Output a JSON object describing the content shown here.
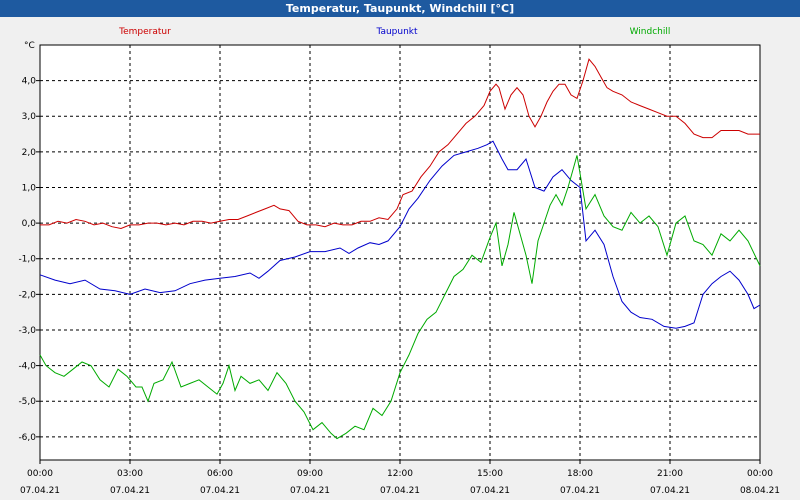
{
  "window": {
    "title": "Temperatur, Taupunkt, Windchill [°C]"
  },
  "chart_data": {
    "type": "line",
    "title": "Temperatur, Taupunkt, Windchill [°C]",
    "ylabel": "°C",
    "ylim": [
      -6.65,
      5.0
    ],
    "y_ticks": [
      4.0,
      3.0,
      2.0,
      1.0,
      0.0,
      -1.0,
      -2.0,
      -3.0,
      -4.0,
      -5.0,
      -6.0
    ],
    "y_tick_labels": [
      "4,0",
      "3,0",
      "2,0",
      "1,0",
      "0,0",
      "-1,0",
      "-2,0",
      "-3,0",
      "-4,0",
      "-5,0",
      "-6,0"
    ],
    "x_range_hours": [
      0,
      24
    ],
    "x_ticks": [
      {
        "hour": 0,
        "time": "00:00",
        "date": "07.04.21"
      },
      {
        "hour": 3,
        "time": "03:00",
        "date": "07.04.21"
      },
      {
        "hour": 6,
        "time": "06:00",
        "date": "07.04.21"
      },
      {
        "hour": 9,
        "time": "09:00",
        "date": "07.04.21"
      },
      {
        "hour": 12,
        "time": "12:00",
        "date": "07.04.21"
      },
      {
        "hour": 15,
        "time": "15:00",
        "date": "07.04.21"
      },
      {
        "hour": 18,
        "time": "18:00",
        "date": "07.04.21"
      },
      {
        "hour": 21,
        "time": "21:00",
        "date": "07.04.21"
      },
      {
        "hour": 24,
        "time": "00:00",
        "date": "08.04.21"
      }
    ],
    "grid": true,
    "series": [
      {
        "name": "Temperatur",
        "color": "#cc0000",
        "points": [
          [
            0,
            -0.05
          ],
          [
            0.3,
            -0.05
          ],
          [
            0.6,
            0.05
          ],
          [
            0.9,
            0.0
          ],
          [
            1.2,
            0.1
          ],
          [
            1.5,
            0.05
          ],
          [
            1.8,
            -0.05
          ],
          [
            2.1,
            0.0
          ],
          [
            2.4,
            -0.1
          ],
          [
            2.7,
            -0.15
          ],
          [
            3.0,
            -0.05
          ],
          [
            3.3,
            -0.05
          ],
          [
            3.6,
            0.0
          ],
          [
            3.9,
            0.0
          ],
          [
            4.2,
            -0.05
          ],
          [
            4.5,
            0.0
          ],
          [
            4.8,
            -0.05
          ],
          [
            5.1,
            0.05
          ],
          [
            5.4,
            0.05
          ],
          [
            5.7,
            0.0
          ],
          [
            6.0,
            0.05
          ],
          [
            6.3,
            0.1
          ],
          [
            6.6,
            0.1
          ],
          [
            6.9,
            0.2
          ],
          [
            7.2,
            0.3
          ],
          [
            7.5,
            0.4
          ],
          [
            7.8,
            0.5
          ],
          [
            8.0,
            0.4
          ],
          [
            8.3,
            0.35
          ],
          [
            8.6,
            0.05
          ],
          [
            8.9,
            -0.05
          ],
          [
            9.2,
            -0.05
          ],
          [
            9.5,
            -0.1
          ],
          [
            9.8,
            0.0
          ],
          [
            10.1,
            -0.05
          ],
          [
            10.4,
            -0.05
          ],
          [
            10.7,
            0.05
          ],
          [
            11.0,
            0.05
          ],
          [
            11.3,
            0.15
          ],
          [
            11.6,
            0.1
          ],
          [
            11.9,
            0.4
          ],
          [
            12.1,
            0.8
          ],
          [
            12.4,
            0.9
          ],
          [
            12.7,
            1.3
          ],
          [
            13.0,
            1.6
          ],
          [
            13.3,
            2.0
          ],
          [
            13.6,
            2.2
          ],
          [
            13.9,
            2.5
          ],
          [
            14.2,
            2.8
          ],
          [
            14.5,
            3.0
          ],
          [
            14.8,
            3.3
          ],
          [
            15.0,
            3.7
          ],
          [
            15.2,
            3.9
          ],
          [
            15.3,
            3.8
          ],
          [
            15.5,
            3.2
          ],
          [
            15.7,
            3.6
          ],
          [
            15.9,
            3.8
          ],
          [
            16.1,
            3.6
          ],
          [
            16.3,
            3.0
          ],
          [
            16.5,
            2.7
          ],
          [
            16.7,
            3.0
          ],
          [
            16.9,
            3.4
          ],
          [
            17.1,
            3.7
          ],
          [
            17.3,
            3.9
          ],
          [
            17.5,
            3.9
          ],
          [
            17.7,
            3.6
          ],
          [
            17.9,
            3.5
          ],
          [
            18.1,
            4.0
          ],
          [
            18.3,
            4.6
          ],
          [
            18.5,
            4.4
          ],
          [
            18.7,
            4.1
          ],
          [
            18.9,
            3.8
          ],
          [
            19.1,
            3.7
          ],
          [
            19.4,
            3.6
          ],
          [
            19.7,
            3.4
          ],
          [
            20.0,
            3.3
          ],
          [
            20.3,
            3.2
          ],
          [
            20.6,
            3.1
          ],
          [
            20.9,
            3.0
          ],
          [
            21.2,
            3.0
          ],
          [
            21.5,
            2.8
          ],
          [
            21.8,
            2.5
          ],
          [
            22.1,
            2.4
          ],
          [
            22.4,
            2.4
          ],
          [
            22.7,
            2.6
          ],
          [
            23.0,
            2.6
          ],
          [
            23.3,
            2.6
          ],
          [
            23.6,
            2.5
          ],
          [
            24.0,
            2.5
          ]
        ]
      },
      {
        "name": "Taupunkt",
        "color": "#0000cc",
        "points": [
          [
            0,
            -1.45
          ],
          [
            0.5,
            -1.6
          ],
          [
            1.0,
            -1.7
          ],
          [
            1.5,
            -1.6
          ],
          [
            2.0,
            -1.85
          ],
          [
            2.5,
            -1.9
          ],
          [
            3.0,
            -2.0
          ],
          [
            3.5,
            -1.85
          ],
          [
            4.0,
            -1.95
          ],
          [
            4.5,
            -1.9
          ],
          [
            5.0,
            -1.7
          ],
          [
            5.5,
            -1.6
          ],
          [
            6.0,
            -1.55
          ],
          [
            6.5,
            -1.5
          ],
          [
            7.0,
            -1.4
          ],
          [
            7.3,
            -1.55
          ],
          [
            7.6,
            -1.35
          ],
          [
            8.0,
            -1.05
          ],
          [
            8.5,
            -0.95
          ],
          [
            9.0,
            -0.8
          ],
          [
            9.5,
            -0.8
          ],
          [
            10.0,
            -0.7
          ],
          [
            10.3,
            -0.85
          ],
          [
            10.6,
            -0.7
          ],
          [
            11.0,
            -0.55
          ],
          [
            11.3,
            -0.6
          ],
          [
            11.6,
            -0.5
          ],
          [
            12.0,
            -0.1
          ],
          [
            12.3,
            0.4
          ],
          [
            12.6,
            0.7
          ],
          [
            13.0,
            1.2
          ],
          [
            13.4,
            1.6
          ],
          [
            13.8,
            1.9
          ],
          [
            14.2,
            2.0
          ],
          [
            14.6,
            2.1
          ],
          [
            14.9,
            2.2
          ],
          [
            15.1,
            2.3
          ],
          [
            15.4,
            1.8
          ],
          [
            15.6,
            1.5
          ],
          [
            15.9,
            1.5
          ],
          [
            16.2,
            1.8
          ],
          [
            16.5,
            1.0
          ],
          [
            16.8,
            0.9
          ],
          [
            17.1,
            1.3
          ],
          [
            17.4,
            1.5
          ],
          [
            17.7,
            1.2
          ],
          [
            18.0,
            1.0
          ],
          [
            18.2,
            -0.5
          ],
          [
            18.5,
            -0.2
          ],
          [
            18.8,
            -0.6
          ],
          [
            19.1,
            -1.5
          ],
          [
            19.4,
            -2.2
          ],
          [
            19.7,
            -2.5
          ],
          [
            20.0,
            -2.65
          ],
          [
            20.4,
            -2.7
          ],
          [
            20.8,
            -2.9
          ],
          [
            21.2,
            -2.95
          ],
          [
            21.5,
            -2.9
          ],
          [
            21.8,
            -2.8
          ],
          [
            22.1,
            -2.0
          ],
          [
            22.4,
            -1.7
          ],
          [
            22.7,
            -1.5
          ],
          [
            23.0,
            -1.35
          ],
          [
            23.3,
            -1.6
          ],
          [
            23.6,
            -2.0
          ],
          [
            23.8,
            -2.4
          ],
          [
            24.0,
            -2.3
          ]
        ]
      },
      {
        "name": "Windchill",
        "color": "#00aa00",
        "points": [
          [
            0,
            -3.7
          ],
          [
            0.2,
            -4.0
          ],
          [
            0.5,
            -4.2
          ],
          [
            0.8,
            -4.3
          ],
          [
            1.1,
            -4.1
          ],
          [
            1.4,
            -3.9
          ],
          [
            1.7,
            -4.0
          ],
          [
            2.0,
            -4.4
          ],
          [
            2.3,
            -4.6
          ],
          [
            2.6,
            -4.1
          ],
          [
            2.9,
            -4.3
          ],
          [
            3.2,
            -4.6
          ],
          [
            3.4,
            -4.6
          ],
          [
            3.6,
            -5.0
          ],
          [
            3.8,
            -4.5
          ],
          [
            4.1,
            -4.4
          ],
          [
            4.4,
            -3.9
          ],
          [
            4.7,
            -4.6
          ],
          [
            5.0,
            -4.5
          ],
          [
            5.3,
            -4.4
          ],
          [
            5.6,
            -4.6
          ],
          [
            5.9,
            -4.8
          ],
          [
            6.1,
            -4.5
          ],
          [
            6.3,
            -4.0
          ],
          [
            6.5,
            -4.7
          ],
          [
            6.7,
            -4.3
          ],
          [
            7.0,
            -4.5
          ],
          [
            7.3,
            -4.4
          ],
          [
            7.6,
            -4.7
          ],
          [
            7.9,
            -4.2
          ],
          [
            8.2,
            -4.5
          ],
          [
            8.5,
            -5.0
          ],
          [
            8.8,
            -5.3
          ],
          [
            9.1,
            -5.8
          ],
          [
            9.4,
            -5.6
          ],
          [
            9.7,
            -5.9
          ],
          [
            9.9,
            -6.05
          ],
          [
            10.2,
            -5.9
          ],
          [
            10.5,
            -5.7
          ],
          [
            10.8,
            -5.8
          ],
          [
            11.1,
            -5.2
          ],
          [
            11.4,
            -5.4
          ],
          [
            11.7,
            -5.0
          ],
          [
            12.0,
            -4.2
          ],
          [
            12.3,
            -3.7
          ],
          [
            12.6,
            -3.1
          ],
          [
            12.9,
            -2.7
          ],
          [
            13.2,
            -2.5
          ],
          [
            13.5,
            -2.0
          ],
          [
            13.8,
            -1.5
          ],
          [
            14.1,
            -1.3
          ],
          [
            14.4,
            -0.9
          ],
          [
            14.7,
            -1.1
          ],
          [
            15.0,
            -0.4
          ],
          [
            15.2,
            0.0
          ],
          [
            15.4,
            -1.2
          ],
          [
            15.6,
            -0.6
          ],
          [
            15.8,
            0.3
          ],
          [
            16.0,
            -0.3
          ],
          [
            16.2,
            -0.9
          ],
          [
            16.4,
            -1.7
          ],
          [
            16.6,
            -0.5
          ],
          [
            16.8,
            0.0
          ],
          [
            17.0,
            0.5
          ],
          [
            17.2,
            0.8
          ],
          [
            17.4,
            0.5
          ],
          [
            17.6,
            1.0
          ],
          [
            17.9,
            1.9
          ],
          [
            18.2,
            0.4
          ],
          [
            18.5,
            0.8
          ],
          [
            18.8,
            0.2
          ],
          [
            19.1,
            -0.1
          ],
          [
            19.4,
            -0.2
          ],
          [
            19.7,
            0.3
          ],
          [
            20.0,
            0.0
          ],
          [
            20.3,
            0.2
          ],
          [
            20.6,
            -0.1
          ],
          [
            20.9,
            -0.9
          ],
          [
            21.2,
            0.0
          ],
          [
            21.5,
            0.2
          ],
          [
            21.8,
            -0.5
          ],
          [
            22.1,
            -0.6
          ],
          [
            22.4,
            -0.9
          ],
          [
            22.7,
            -0.3
          ],
          [
            23.0,
            -0.5
          ],
          [
            23.3,
            -0.2
          ],
          [
            23.6,
            -0.5
          ],
          [
            24.0,
            -1.2
          ]
        ]
      }
    ]
  }
}
